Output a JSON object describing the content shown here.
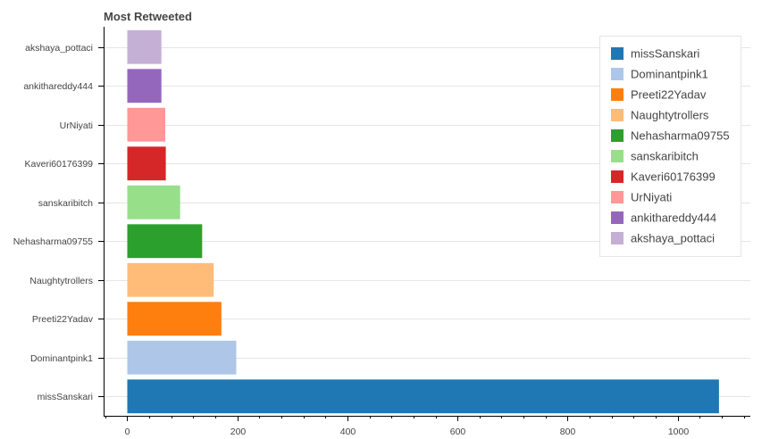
{
  "chart_data": {
    "type": "bar",
    "orientation": "horizontal",
    "title": "Most Retweeted",
    "xlabel": "",
    "ylabel": "",
    "xlim": [
      -43,
      1132
    ],
    "x_ticks": [
      0,
      200,
      400,
      600,
      800,
      1000
    ],
    "grid": "horizontal gridlines",
    "legend_position": "top-right",
    "categories": [
      "missSanskari",
      "Dominantpink1",
      "Preeti22Yadav",
      "Naughtytrollers",
      "Nehasharma09755",
      "sanskaribitch",
      "Kaveri60176399",
      "UrNiyati",
      "ankithareddy444",
      "akshaya_pottaci"
    ],
    "values": [
      1075,
      198,
      171,
      157,
      136,
      96,
      70,
      69,
      62,
      62
    ],
    "colors": [
      "#1f77b4",
      "#aec7e8",
      "#ff7f0e",
      "#ffbb78",
      "#2ca02c",
      "#98df8a",
      "#d62728",
      "#ff9896",
      "#9467bd",
      "#c5b0d5"
    ]
  }
}
